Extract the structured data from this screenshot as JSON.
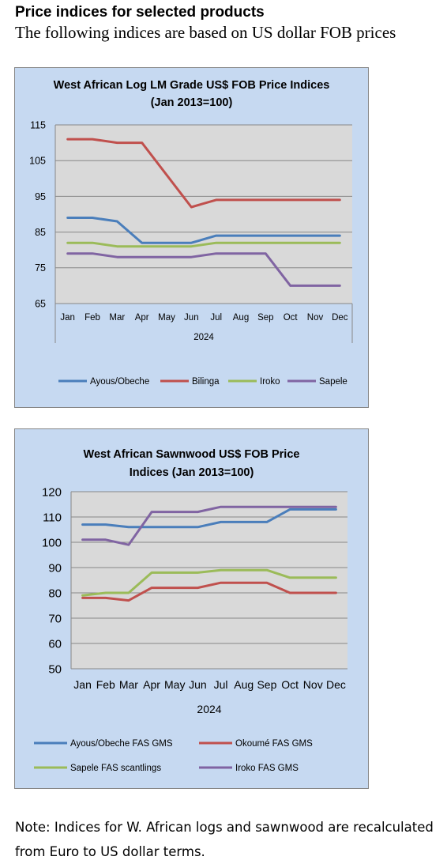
{
  "header": {
    "title": "Price indices for selected products",
    "subtitle": "The following indices are based on US dollar FOB prices"
  },
  "note": "Note: Indices for W. African logs and sawnwood are recalculated from Euro to US dollar terms.",
  "chart_data": [
    {
      "type": "line",
      "title": "West African Log LM Grade US$ FOB Price Indices",
      "title_line2": "(Jan 2013=100)",
      "xlabel": "2024",
      "ylabel": "",
      "categories": [
        "Jan",
        "Feb",
        "Mar",
        "Apr",
        "May",
        "Jun",
        "Jul",
        "Aug",
        "Sep",
        "Oct",
        "Nov",
        "Dec"
      ],
      "ylim": [
        65,
        115
      ],
      "yticks": [
        65,
        75,
        85,
        95,
        105,
        115
      ],
      "grid": true,
      "legend": "bottom",
      "series": [
        {
          "name": "Ayous/Obeche",
          "color": "#4a7ebb",
          "values": [
            89,
            89,
            88,
            82,
            82,
            82,
            84,
            84,
            84,
            84,
            84,
            84
          ]
        },
        {
          "name": "Bilinga",
          "color": "#c0504d",
          "values": [
            111,
            111,
            110,
            110,
            null,
            92,
            94,
            94,
            94,
            94,
            94,
            94
          ]
        },
        {
          "name": "Iroko",
          "color": "#9bbb59",
          "values": [
            82,
            82,
            81,
            81,
            81,
            81,
            82,
            82,
            82,
            82,
            82,
            82
          ]
        },
        {
          "name": "Sapele",
          "color": "#8064a2",
          "values": [
            79,
            79,
            78,
            78,
            78,
            78,
            79,
            79,
            79,
            70,
            70,
            70
          ]
        }
      ]
    },
    {
      "type": "line",
      "title": "West African Sawnwood US$ FOB Price",
      "title_line2": "Indices (Jan 2013=100)",
      "xlabel": "2024",
      "ylabel": "",
      "categories": [
        "Jan",
        "Feb",
        "Mar",
        "Apr",
        "May",
        "Jun",
        "Jul",
        "Aug",
        "Sep",
        "Oct",
        "Nov",
        "Dec"
      ],
      "ylim": [
        50,
        120
      ],
      "yticks": [
        50,
        60,
        70,
        80,
        90,
        100,
        110,
        120
      ],
      "grid": true,
      "legend": "bottom",
      "series": [
        {
          "name": "Ayous/Obeche  FAS GMS",
          "color": "#4a7ebb",
          "values": [
            107,
            107,
            106,
            106,
            106,
            106,
            108,
            108,
            108,
            113,
            113,
            113
          ]
        },
        {
          "name": "Okoumé  FAS GMS",
          "color": "#c0504d",
          "values": [
            78,
            78,
            77,
            82,
            82,
            82,
            84,
            84,
            84,
            80,
            80,
            80
          ]
        },
        {
          "name": "Sapele FAS scantlings",
          "color": "#9bbb59",
          "values": [
            79,
            80,
            80,
            88,
            88,
            88,
            89,
            89,
            89,
            86,
            86,
            86
          ]
        },
        {
          "name": "Iroko FAS GMS",
          "color": "#8064a2",
          "values": [
            101,
            101,
            99,
            112,
            112,
            112,
            114,
            114,
            114,
            114,
            114,
            114
          ]
        }
      ]
    }
  ]
}
